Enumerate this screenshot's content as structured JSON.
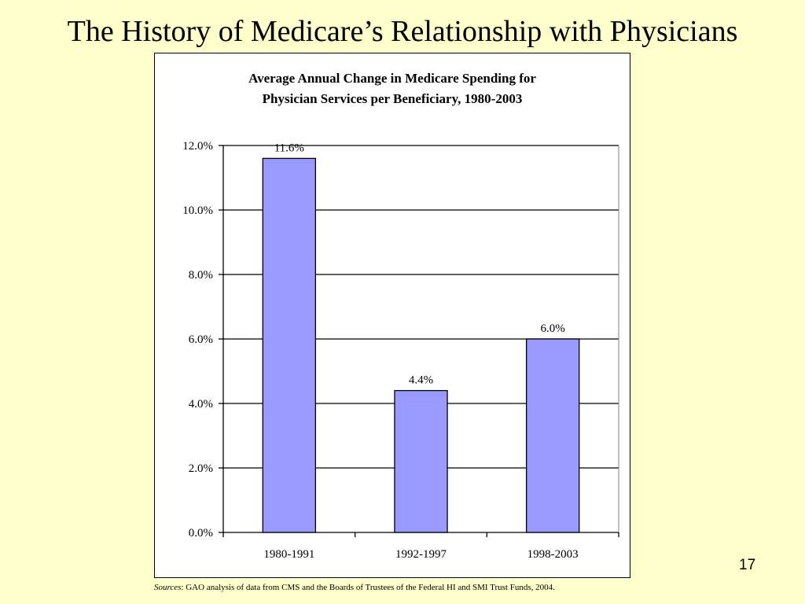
{
  "slide": {
    "title": "The History of Medicare’s Relationship with Physicians",
    "page_number": "17",
    "sources_label": "Sources",
    "sources_text": ": GAO analysis of data from CMS and the Boards of Trustees of the Federal HI and SMI Trust Funds, 2004."
  },
  "chart_data": {
    "type": "bar",
    "title_lines": [
      "Average Annual Change in Medicare Spending for",
      "Physician Services per Beneficiary, 1980-2003"
    ],
    "categories": [
      "1980-1991",
      "1992-1997",
      "1998-2003"
    ],
    "values": [
      11.6,
      4.4,
      6.0
    ],
    "data_labels": [
      "11.6%",
      "4.4%",
      "6.0%"
    ],
    "y_ticks": [
      0,
      2,
      4,
      6,
      8,
      10,
      12
    ],
    "y_tick_labels": [
      "0.0%",
      "2.0%",
      "4.0%",
      "6.0%",
      "8.0%",
      "10.0%",
      "12.0%"
    ],
    "ylim": [
      0,
      12
    ],
    "xlabel": "",
    "ylabel": "",
    "grid": true,
    "legend": "none",
    "colors": {
      "bar_fill": "#9999FF",
      "bar_stroke": "#000000",
      "gridline": "#000000",
      "background": "#FFFFFF"
    }
  }
}
